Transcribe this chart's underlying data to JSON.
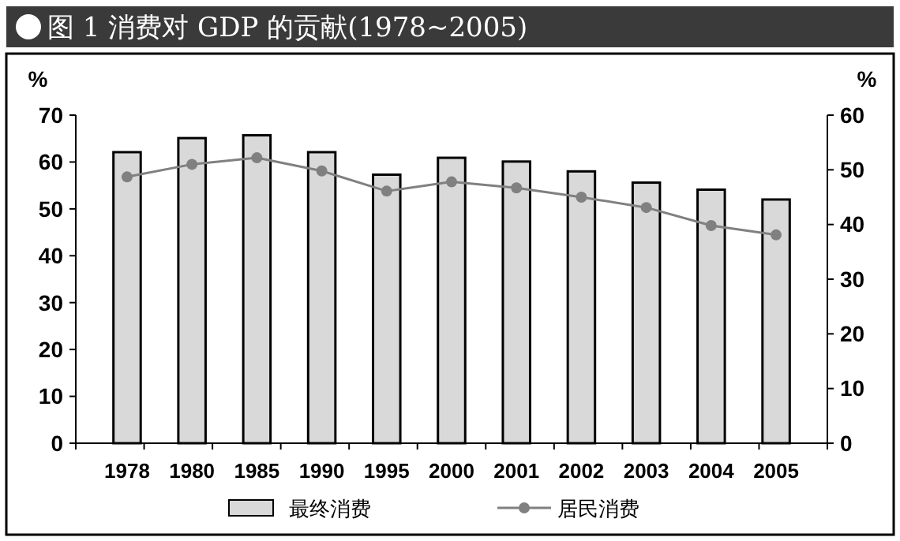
{
  "chart_data": {
    "type": "bar",
    "title": "图 1  消费对 GDP 的贡献(1978~2005)",
    "ylabel": "%",
    "y2label": "%",
    "categories": [
      "1978",
      "1980",
      "1985",
      "1990",
      "1995",
      "2000",
      "2001",
      "2002",
      "2003",
      "2004",
      "2005"
    ],
    "series": [
      {
        "name": "最终消费",
        "color": "#d9d9d9",
        "values": [
          62.1,
          65.1,
          65.7,
          62.1,
          57.3,
          60.9,
          60.1,
          58.0,
          55.6,
          54.1,
          52.0
        ]
      },
      {
        "name": "居民消费",
        "type": "line",
        "axis": "y2",
        "color": "#808080",
        "values": [
          48.7,
          51.0,
          52.2,
          49.8,
          46.1,
          47.8,
          46.7,
          45.0,
          43.1,
          39.8,
          38.1
        ]
      }
    ],
    "ylim": [
      0,
      70
    ],
    "yticks": [
      0,
      10,
      20,
      30,
      40,
      50,
      60,
      70
    ],
    "y2lim": [
      0,
      60
    ],
    "y2ticks": [
      0,
      10,
      20,
      30,
      40,
      50,
      60
    ],
    "marker": "circle",
    "line_style": "solid",
    "legend": "bottom",
    "grid": false
  }
}
